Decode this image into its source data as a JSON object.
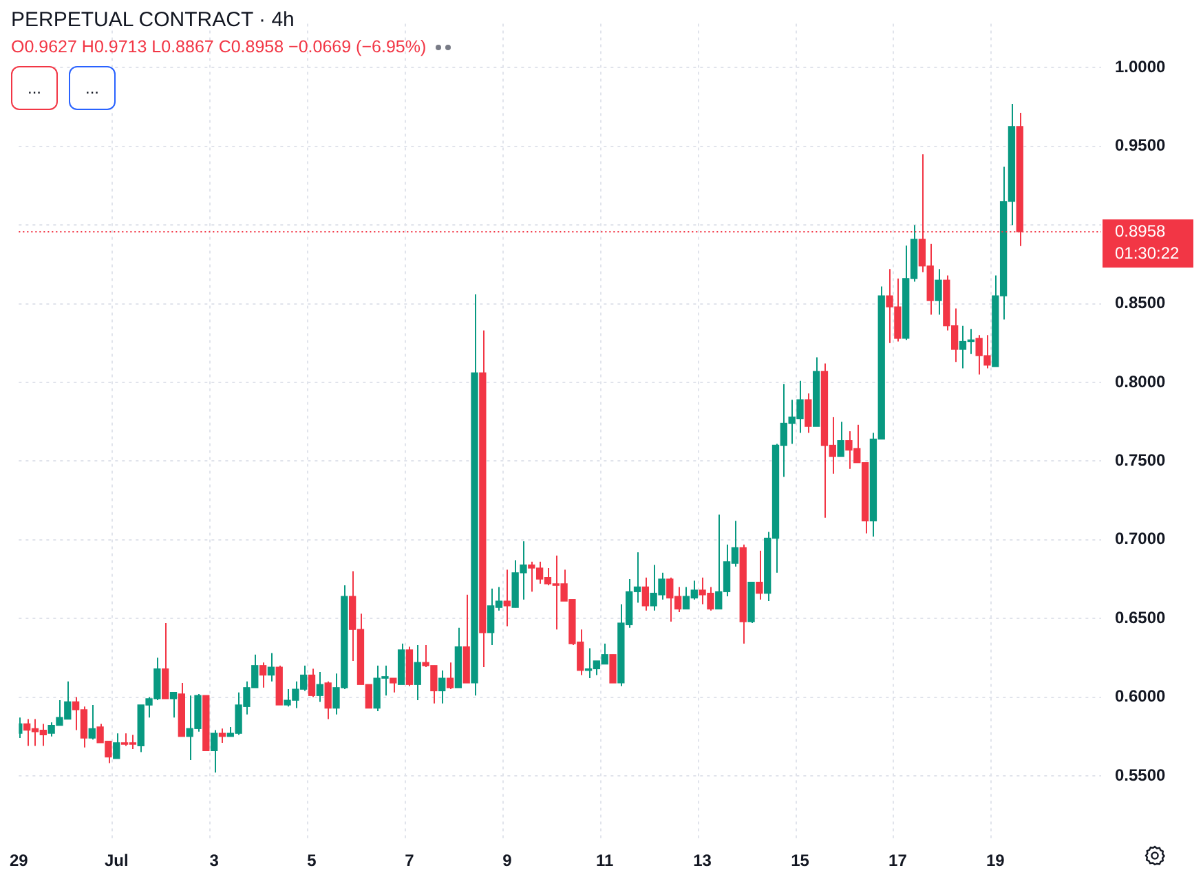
{
  "chart_data": {
    "type": "candlestick",
    "title": "PERPETUAL CONTRACT · 4h",
    "subtitle": "O0.9627 H0.9713 L0.8867 C0.8958 −0.0669 (−6.95%)",
    "annotations": [
      "...",
      "..."
    ],
    "categories": [
      "29",
      null,
      null,
      null,
      null,
      null,
      null,
      null,
      null,
      null,
      null,
      null,
      "Jul",
      null,
      null,
      null,
      null,
      null,
      null,
      null,
      null,
      null,
      null,
      null,
      "3",
      null,
      null,
      null,
      null,
      null,
      null,
      null,
      null,
      null,
      null,
      null,
      "5",
      null,
      null,
      null,
      null,
      null,
      null,
      null,
      null,
      null,
      null,
      null,
      "7",
      null,
      null,
      null,
      null,
      null,
      null,
      null,
      null,
      null,
      null,
      null,
      "9",
      null,
      null,
      null,
      null,
      null,
      null,
      null,
      null,
      null,
      null,
      null,
      "11",
      null,
      null,
      null,
      null,
      null,
      null,
      null,
      null,
      null,
      null,
      null,
      "13",
      null,
      null,
      null,
      null,
      null,
      null,
      null,
      null,
      null,
      null,
      null,
      "15",
      null,
      null,
      null,
      null,
      null,
      null,
      null,
      null,
      null,
      null,
      null,
      "17",
      null,
      null,
      null,
      null,
      null,
      null,
      null,
      null,
      null,
      null,
      null,
      "19",
      null,
      null,
      null,
      null,
      null,
      null,
      null,
      null,
      null,
      null,
      null,
      null,
      null
    ],
    "ohlc": [
      [
        0.577,
        0.587,
        0.574,
        0.583
      ],
      [
        0.583,
        0.586,
        0.569,
        0.579
      ],
      [
        0.58,
        0.586,
        0.569,
        0.578
      ],
      [
        0.579,
        0.583,
        0.569,
        0.576
      ],
      [
        0.577,
        0.584,
        0.575,
        0.582
      ],
      [
        0.582,
        0.598,
        0.582,
        0.587
      ],
      [
        0.586,
        0.61,
        0.586,
        0.597
      ],
      [
        0.597,
        0.6,
        0.579,
        0.592
      ],
      [
        0.592,
        0.594,
        0.568,
        0.574
      ],
      [
        0.574,
        0.595,
        0.573,
        0.58
      ],
      [
        0.581,
        0.583,
        0.571,
        0.571
      ],
      [
        0.572,
        0.572,
        0.558,
        0.562
      ],
      [
        0.561,
        0.577,
        0.561,
        0.571
      ],
      [
        0.571,
        0.577,
        0.569,
        0.57
      ],
      [
        0.571,
        0.576,
        0.567,
        0.57
      ],
      [
        0.569,
        0.595,
        0.565,
        0.595
      ],
      [
        0.595,
        0.6,
        0.587,
        0.599
      ],
      [
        0.599,
        0.625,
        0.598,
        0.618
      ],
      [
        0.618,
        0.647,
        0.599,
        0.599
      ],
      [
        0.599,
        0.603,
        0.587,
        0.603
      ],
      [
        0.602,
        0.609,
        0.575,
        0.575
      ],
      [
        0.575,
        0.601,
        0.56,
        0.58
      ],
      [
        0.58,
        0.602,
        0.578,
        0.601
      ],
      [
        0.601,
        0.601,
        0.566,
        0.566
      ],
      [
        0.566,
        0.579,
        0.552,
        0.577
      ],
      [
        0.577,
        0.58,
        0.571,
        0.575
      ],
      [
        0.575,
        0.581,
        0.575,
        0.577
      ],
      [
        0.577,
        0.603,
        0.576,
        0.595
      ],
      [
        0.594,
        0.61,
        0.589,
        0.606
      ],
      [
        0.606,
        0.627,
        0.606,
        0.62
      ],
      [
        0.62,
        0.622,
        0.606,
        0.614
      ],
      [
        0.614,
        0.628,
        0.61,
        0.619
      ],
      [
        0.619,
        0.62,
        0.595,
        0.595
      ],
      [
        0.595,
        0.605,
        0.594,
        0.598
      ],
      [
        0.598,
        0.61,
        0.593,
        0.605
      ],
      [
        0.605,
        0.62,
        0.604,
        0.614
      ],
      [
        0.614,
        0.618,
        0.6,
        0.601
      ],
      [
        0.601,
        0.616,
        0.597,
        0.608
      ],
      [
        0.609,
        0.61,
        0.586,
        0.593
      ],
      [
        0.593,
        0.615,
        0.589,
        0.606
      ],
      [
        0.606,
        0.671,
        0.605,
        0.664
      ],
      [
        0.664,
        0.68,
        0.623,
        0.643
      ],
      [
        0.643,
        0.653,
        0.608,
        0.608
      ],
      [
        0.608,
        0.608,
        0.593,
        0.593
      ],
      [
        0.593,
        0.62,
        0.591,
        0.612
      ],
      [
        0.612,
        0.62,
        0.601,
        0.613
      ],
      [
        0.612,
        0.612,
        0.603,
        0.609
      ],
      [
        0.608,
        0.634,
        0.608,
        0.63
      ],
      [
        0.63,
        0.632,
        0.607,
        0.608
      ],
      [
        0.608,
        0.633,
        0.598,
        0.622
      ],
      [
        0.622,
        0.633,
        0.619,
        0.62
      ],
      [
        0.62,
        0.62,
        0.596,
        0.604
      ],
      [
        0.604,
        0.617,
        0.596,
        0.612
      ],
      [
        0.612,
        0.622,
        0.605,
        0.606
      ],
      [
        0.606,
        0.644,
        0.606,
        0.632
      ],
      [
        0.632,
        0.665,
        0.609,
        0.609
      ],
      [
        0.609,
        0.856,
        0.601,
        0.806
      ],
      [
        0.806,
        0.833,
        0.619,
        0.641
      ],
      [
        0.641,
        0.669,
        0.633,
        0.658
      ],
      [
        0.657,
        0.67,
        0.655,
        0.661
      ],
      [
        0.661,
        0.681,
        0.645,
        0.658
      ],
      [
        0.657,
        0.687,
        0.657,
        0.679
      ],
      [
        0.679,
        0.699,
        0.662,
        0.684
      ],
      [
        0.684,
        0.686,
        0.667,
        0.682
      ],
      [
        0.682,
        0.686,
        0.672,
        0.675
      ],
      [
        0.676,
        0.682,
        0.671,
        0.672
      ],
      [
        0.672,
        0.69,
        0.643,
        0.671
      ],
      [
        0.672,
        0.681,
        0.661,
        0.661
      ],
      [
        0.662,
        0.662,
        0.633,
        0.634
      ],
      [
        0.635,
        0.643,
        0.614,
        0.617
      ],
      [
        0.617,
        0.631,
        0.612,
        0.618
      ],
      [
        0.618,
        0.623,
        0.614,
        0.623
      ],
      [
        0.621,
        0.634,
        0.621,
        0.627
      ],
      [
        0.627,
        0.627,
        0.609,
        0.609
      ],
      [
        0.609,
        0.659,
        0.607,
        0.647
      ],
      [
        0.646,
        0.675,
        0.644,
        0.667
      ],
      [
        0.667,
        0.692,
        0.66,
        0.67
      ],
      [
        0.67,
        0.676,
        0.655,
        0.658
      ],
      [
        0.658,
        0.684,
        0.655,
        0.666
      ],
      [
        0.665,
        0.679,
        0.662,
        0.675
      ],
      [
        0.675,
        0.676,
        0.648,
        0.663
      ],
      [
        0.664,
        0.67,
        0.654,
        0.656
      ],
      [
        0.656,
        0.67,
        0.656,
        0.664
      ],
      [
        0.663,
        0.674,
        0.662,
        0.668
      ],
      [
        0.668,
        0.676,
        0.659,
        0.665
      ],
      [
        0.666,
        0.67,
        0.655,
        0.656
      ],
      [
        0.656,
        0.716,
        0.656,
        0.667
      ],
      [
        0.667,
        0.697,
        0.664,
        0.686
      ],
      [
        0.685,
        0.712,
        0.683,
        0.695
      ],
      [
        0.695,
        0.697,
        0.634,
        0.648
      ],
      [
        0.648,
        0.673,
        0.647,
        0.673
      ],
      [
        0.673,
        0.693,
        0.662,
        0.666
      ],
      [
        0.666,
        0.705,
        0.661,
        0.701
      ],
      [
        0.701,
        0.761,
        0.679,
        0.76
      ],
      [
        0.76,
        0.799,
        0.74,
        0.774
      ],
      [
        0.774,
        0.789,
        0.761,
        0.778
      ],
      [
        0.777,
        0.801,
        0.768,
        0.789
      ],
      [
        0.789,
        0.793,
        0.768,
        0.772
      ],
      [
        0.772,
        0.816,
        0.772,
        0.807
      ],
      [
        0.807,
        0.812,
        0.714,
        0.76
      ],
      [
        0.76,
        0.778,
        0.742,
        0.753
      ],
      [
        0.753,
        0.775,
        0.753,
        0.763
      ],
      [
        0.763,
        0.769,
        0.745,
        0.757
      ],
      [
        0.758,
        0.773,
        0.749,
        0.749
      ],
      [
        0.749,
        0.749,
        0.704,
        0.712
      ],
      [
        0.712,
        0.768,
        0.702,
        0.764
      ],
      [
        0.764,
        0.861,
        0.764,
        0.855
      ],
      [
        0.855,
        0.872,
        0.825,
        0.848
      ],
      [
        0.848,
        0.866,
        0.826,
        0.828
      ],
      [
        0.828,
        0.887,
        0.827,
        0.866
      ],
      [
        0.866,
        0.9,
        0.864,
        0.891
      ],
      [
        0.891,
        0.945,
        0.87,
        0.874
      ],
      [
        0.874,
        0.888,
        0.843,
        0.852
      ],
      [
        0.852,
        0.872,
        0.843,
        0.865
      ],
      [
        0.865,
        0.868,
        0.833,
        0.836
      ],
      [
        0.836,
        0.847,
        0.813,
        0.821
      ],
      [
        0.821,
        0.836,
        0.809,
        0.826
      ],
      [
        0.826,
        0.834,
        0.818,
        0.827
      ],
      [
        0.828,
        0.83,
        0.805,
        0.817
      ],
      [
        0.817,
        0.83,
        0.809,
        0.811
      ],
      [
        0.81,
        0.868,
        0.81,
        0.855
      ],
      [
        0.855,
        0.937,
        0.84,
        0.915
      ],
      [
        0.915,
        0.977,
        0.9,
        0.9627
      ],
      [
        0.9627,
        0.9713,
        0.8867,
        0.8958
      ],
      null,
      null,
      null,
      null,
      null,
      null,
      null,
      null,
      null,
      null
    ],
    "colors": [
      "#089981",
      "#f23645",
      "#f23645",
      "#f23645",
      "#089981",
      "#089981",
      "#089981",
      "#f23645",
      "#f23645",
      "#089981",
      "#f23645",
      "#f23645",
      "#089981",
      "#f23645",
      "#f23645",
      "#089981",
      "#089981",
      "#089981",
      "#f23645",
      "#089981",
      "#f23645",
      "#089981",
      "#089981",
      "#f23645",
      "#089981",
      "#f23645",
      "#089981",
      "#089981",
      "#089981",
      "#089981",
      "#f23645",
      "#089981",
      "#f23645",
      "#089981",
      "#089981",
      "#089981",
      "#f23645",
      "#089981",
      "#f23645",
      "#089981",
      "#089981",
      "#f23645",
      "#f23645",
      "#f23645",
      "#089981",
      "#089981",
      "#f23645",
      "#089981",
      "#f23645",
      "#089981",
      "#f23645",
      "#f23645",
      "#089981",
      "#f23645",
      "#089981",
      "#f23645",
      "#089981",
      "#f23645",
      "#089981",
      "#089981",
      "#f23645",
      "#089981",
      "#089981",
      "#f23645",
      "#f23645",
      "#f23645",
      "#f23645",
      "#f23645",
      "#f23645",
      "#f23645",
      "#089981",
      "#089981",
      "#089981",
      "#f23645",
      "#089981",
      "#089981",
      "#089981",
      "#f23645",
      "#089981",
      "#089981",
      "#f23645",
      "#f23645",
      "#089981",
      "#089981",
      "#f23645",
      "#f23645",
      "#089981",
      "#089981",
      "#089981",
      "#f23645",
      "#089981",
      "#f23645",
      "#089981",
      "#089981",
      "#089981",
      "#089981",
      "#089981",
      "#f23645",
      "#089981",
      "#f23645",
      "#f23645",
      "#089981",
      "#f23645",
      "#f23645",
      "#f23645",
      "#089981",
      "#089981",
      "#f23645",
      "#f23645",
      "#089981",
      "#089981",
      "#f23645",
      "#f23645",
      "#089981",
      "#f23645",
      "#f23645",
      "#089981",
      "#089981",
      "#f23645",
      "#f23645",
      "#089981",
      "#089981",
      "#089981",
      "#f23645",
      null,
      null,
      null,
      null,
      null,
      null,
      null,
      null,
      null,
      null
    ],
    "ylim": [
      0.508,
      1.028
    ],
    "yticks": [
      {
        "value": 0.55,
        "label": "0.5500"
      },
      {
        "value": 0.6,
        "label": "0.6000"
      },
      {
        "value": 0.65,
        "label": "0.6500"
      },
      {
        "value": 0.7,
        "label": "0.7000"
      },
      {
        "value": 0.75,
        "label": "0.7500"
      },
      {
        "value": 0.8,
        "label": "0.8000"
      },
      {
        "value": 0.85,
        "label": "0.8500"
      },
      {
        "value": 0.9,
        "label": null
      },
      {
        "value": 0.95,
        "label": "0.9500"
      },
      {
        "value": 1,
        "label": "1.0000"
      }
    ],
    "ref_lines": [
      {
        "axis": "y",
        "value": 0.8958,
        "label": "0.8958\n01:30:22",
        "color": "#f23645",
        "line_style": "dotted"
      }
    ],
    "grid": true
  }
}
